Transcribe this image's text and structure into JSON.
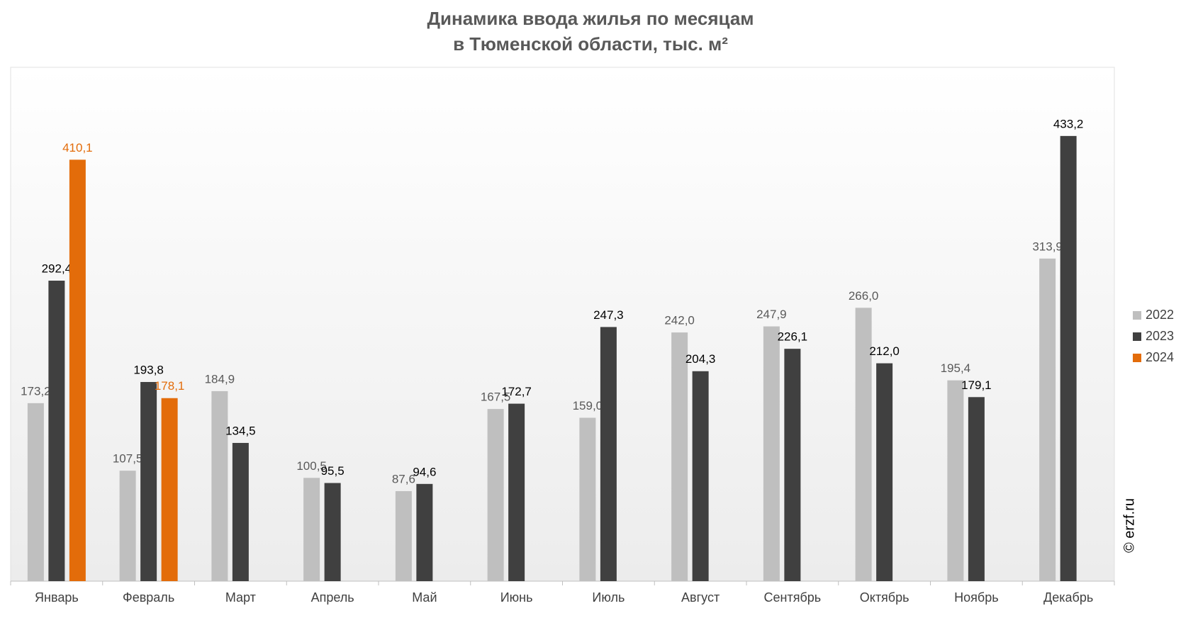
{
  "chart_data": {
    "type": "bar",
    "title": "Динамика ввода жилья по месяцам",
    "subtitle": "в Тюменской области, тыс. м²",
    "watermark": "© erzf.ru",
    "categories": [
      "Январь",
      "Февраль",
      "Март",
      "Апрель",
      "Май",
      "Июнь",
      "Июль",
      "Август",
      "Сентябрь",
      "Октябрь",
      "Ноябрь",
      "Декабрь"
    ],
    "series": [
      {
        "name": "2022",
        "color": "#bfbfbf",
        "label_color": "#595959",
        "values": [
          173.2,
          107.5,
          184.9,
          100.5,
          87.6,
          167.5,
          159.0,
          242.0,
          247.9,
          266.0,
          195.4,
          313.9
        ],
        "value_labels": [
          "173,2",
          "107,5",
          "184,9",
          "100,5",
          "87,6",
          "167,5",
          "159,0",
          "242,0",
          "247,9",
          "266,0",
          "195,4",
          "313,9"
        ]
      },
      {
        "name": "2023",
        "color": "#404040",
        "label_color": "#000000",
        "values": [
          292.4,
          193.8,
          134.5,
          95.5,
          94.6,
          172.7,
          247.3,
          204.3,
          226.1,
          212.0,
          179.1,
          433.2
        ],
        "value_labels": [
          "292,4",
          "193,8",
          "134,5",
          "95,5",
          "94,6",
          "172,7",
          "247,3",
          "204,3",
          "226,1",
          "212,0",
          "179,1",
          "433,2"
        ]
      },
      {
        "name": "2024",
        "color": "#e36c0a",
        "label_color": "#e36c0a",
        "values": [
          410.1,
          178.1,
          null,
          null,
          null,
          null,
          null,
          null,
          null,
          null,
          null,
          null
        ],
        "value_labels": [
          "410,1",
          "178,1",
          null,
          null,
          null,
          null,
          null,
          null,
          null,
          null,
          null,
          null
        ]
      }
    ],
    "ylim": [
      0,
      500
    ],
    "legend": "right"
  }
}
